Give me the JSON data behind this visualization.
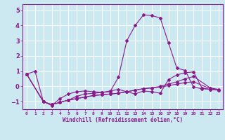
{
  "xlabel": "Windchill (Refroidissement éolien,°C)",
  "bg_color": "#cce8f0",
  "grid_color": "#ffffff",
  "line_color": "#8b1a8b",
  "yticks": [
    -1,
    0,
    1,
    2,
    3,
    4,
    5
  ],
  "xlim": [
    -0.5,
    23.5
  ],
  "ylim": [
    -1.5,
    5.4
  ],
  "series_x": [
    [
      0,
      1,
      2,
      3,
      4,
      5,
      6,
      7,
      8,
      9,
      10,
      11,
      12,
      13,
      14,
      15,
      16,
      17,
      18,
      19,
      20,
      21,
      22
    ],
    [
      0,
      2,
      3,
      4,
      5,
      6,
      7,
      8,
      9,
      10,
      11,
      12,
      13,
      14,
      15,
      16,
      17,
      18,
      19,
      20,
      21,
      22,
      23
    ],
    [
      0,
      2,
      3,
      4,
      5,
      6,
      7,
      8,
      9,
      10,
      11,
      12,
      13,
      14,
      15,
      16,
      17,
      18,
      19,
      20,
      22,
      23
    ],
    [
      0,
      2,
      3,
      4,
      5,
      6,
      7,
      8,
      9,
      10,
      11,
      12,
      13,
      14,
      15,
      16,
      17,
      18,
      19,
      20,
      22,
      23
    ]
  ],
  "series_y": [
    [
      0.8,
      1.0,
      -1.0,
      -1.25,
      -0.8,
      -0.5,
      -0.35,
      -0.3,
      -0.35,
      -0.4,
      -0.35,
      0.6,
      3.0,
      4.0,
      4.7,
      4.65,
      4.5,
      2.85,
      1.2,
      1.05,
      -0.05,
      -0.15,
      -0.2
    ],
    [
      0.8,
      -1.0,
      -1.2,
      -1.05,
      -0.9,
      -0.65,
      -0.5,
      -0.45,
      -0.4,
      -0.3,
      -0.2,
      -0.35,
      -0.5,
      -0.3,
      -0.35,
      -0.45,
      0.45,
      0.75,
      0.9,
      0.95,
      -0.1,
      -0.2,
      -0.25
    ],
    [
      0.8,
      -1.0,
      -1.2,
      -1.05,
      -0.9,
      -0.8,
      -0.7,
      -0.6,
      -0.55,
      -0.5,
      -0.45,
      -0.35,
      -0.25,
      -0.15,
      -0.1,
      0.0,
      0.15,
      0.3,
      0.5,
      0.65,
      -0.1,
      -0.2
    ],
    [
      0.8,
      -1.0,
      -1.2,
      -1.05,
      -0.9,
      -0.8,
      -0.7,
      -0.6,
      -0.55,
      -0.5,
      -0.45,
      -0.35,
      -0.25,
      -0.15,
      -0.1,
      -0.05,
      0.05,
      0.15,
      0.25,
      0.3,
      -0.15,
      -0.25
    ]
  ]
}
